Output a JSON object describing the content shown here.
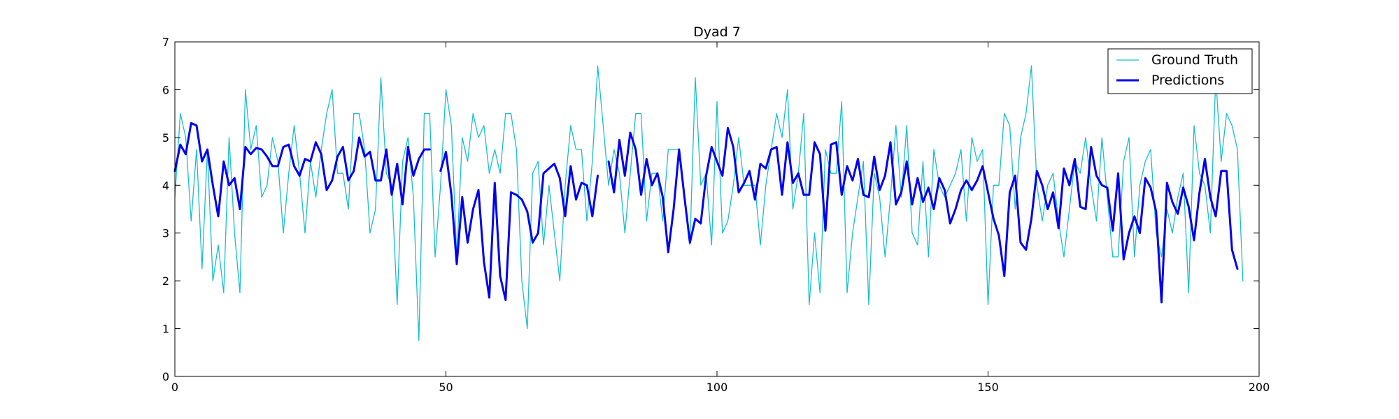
{
  "chart_data": {
    "type": "line",
    "title": "Dyad 7",
    "xlabel": "",
    "ylabel": "",
    "xlim": [
      0,
      200
    ],
    "ylim": [
      0,
      7
    ],
    "xticks": [
      0,
      50,
      100,
      150,
      200
    ],
    "yticks": [
      0,
      1,
      2,
      3,
      4,
      5,
      6,
      7
    ],
    "grid": false,
    "legend_position": "top-right",
    "series": [
      {
        "name": "Ground Truth",
        "color": "#17becf",
        "style": "thin",
        "x": [
          0,
          1,
          2,
          3,
          4,
          5,
          6,
          7,
          8,
          9,
          10,
          11,
          12,
          13,
          14,
          15,
          16,
          17,
          18,
          19,
          20,
          21,
          22,
          23,
          24,
          25,
          26,
          27,
          28,
          29,
          30,
          31,
          32,
          33,
          34,
          35,
          36,
          37,
          38,
          39,
          40,
          41,
          42,
          43,
          44,
          45,
          46,
          47,
          48,
          49,
          50,
          51,
          52,
          53,
          54,
          55,
          56,
          57,
          58,
          59,
          60,
          61,
          62,
          63,
          64,
          65,
          66,
          67,
          68,
          69,
          70,
          71,
          72,
          73,
          74,
          75,
          76,
          77,
          78,
          79,
          80,
          81,
          82,
          83,
          84,
          85,
          86,
          87,
          88,
          89,
          90,
          91,
          92,
          93,
          94,
          95,
          96,
          97,
          98,
          99,
          100,
          101,
          102,
          103,
          104,
          105,
          106,
          107,
          108,
          109,
          110,
          111,
          112,
          113,
          114,
          115,
          116,
          117,
          118,
          119,
          120,
          121,
          122,
          123,
          124,
          125,
          126,
          127,
          128,
          129,
          130,
          131,
          132,
          133,
          134,
          135,
          136,
          137,
          138,
          139,
          140,
          141,
          142,
          143,
          144,
          145,
          146,
          147,
          148,
          149,
          150,
          151,
          152,
          153,
          154,
          155,
          156,
          157,
          158,
          159,
          160,
          161,
          162,
          163,
          164,
          165,
          166,
          167,
          168,
          169,
          170,
          171,
          172,
          173,
          174,
          175,
          176,
          177,
          178,
          179,
          180,
          181,
          182,
          183,
          184,
          185,
          186,
          187,
          188,
          189,
          190,
          191,
          192,
          193,
          194,
          195,
          196,
          197
        ],
        "y": [
          3.75,
          5.5,
          5.0,
          3.25,
          4.75,
          2.25,
          4.75,
          2.0,
          2.75,
          1.75,
          5.0,
          3.0,
          1.75,
          6.0,
          4.75,
          5.25,
          3.75,
          4.0,
          5.0,
          4.5,
          3.0,
          4.25,
          5.25,
          4.25,
          3.0,
          4.5,
          3.75,
          4.75,
          5.5,
          6.0,
          4.25,
          4.25,
          3.5,
          5.5,
          5.5,
          4.75,
          3.0,
          3.5,
          6.25,
          4.25,
          4.0,
          1.5,
          4.5,
          5.0,
          3.75,
          0.75,
          5.5,
          5.5,
          2.5,
          4.0,
          6.0,
          5.25,
          2.5,
          5.0,
          4.5,
          5.5,
          5.0,
          5.25,
          4.25,
          4.75,
          4.25,
          5.5,
          5.5,
          4.75,
          2.0,
          1.0,
          4.25,
          4.5,
          2.75,
          4.0,
          3.0,
          2.0,
          4.0,
          5.25,
          4.75,
          4.75,
          3.25,
          4.5,
          6.5,
          5.25,
          4.0,
          4.75,
          4.25,
          3.0,
          4.25,
          5.5,
          5.5,
          3.25,
          4.25,
          4.25,
          3.25,
          4.75,
          4.75,
          4.75,
          3.75,
          2.75,
          6.25,
          4.0,
          4.25,
          2.75,
          5.75,
          3.0,
          3.25,
          4.0,
          5.0,
          4.0,
          4.0,
          4.0,
          2.75,
          4.0,
          4.75,
          5.5,
          5.0,
          6.0,
          3.5,
          4.25,
          5.5,
          1.5,
          3.0,
          1.75,
          4.75,
          4.25,
          4.25,
          5.75,
          1.75,
          3.0,
          3.75,
          4.5,
          1.5,
          4.25,
          3.75,
          2.5,
          3.75,
          5.25,
          3.75,
          5.25,
          3.0,
          2.75,
          4.5,
          2.5,
          4.75,
          4.0,
          3.75,
          4.0,
          4.25,
          4.75,
          3.25,
          5.0,
          4.5,
          4.75,
          1.5,
          4.0,
          4.0,
          5.5,
          5.25,
          3.5,
          5.0,
          5.5,
          6.5,
          4.0,
          3.25,
          4.0,
          4.25,
          3.25,
          2.5,
          3.5,
          4.5,
          4.25,
          5.0,
          4.0,
          3.25,
          5.0,
          3.75,
          2.5,
          2.5,
          4.5,
          5.0,
          2.5,
          4.0,
          4.5,
          4.75,
          3.0,
          2.5,
          3.5,
          3.0,
          3.75,
          4.25,
          1.75,
          5.25,
          4.25,
          4.0,
          3.0,
          6.25,
          4.5,
          5.5,
          5.25,
          4.75,
          2.0
        ]
      },
      {
        "name": "Predictions",
        "color": "#0000ee",
        "style": "thick",
        "segments": [
          {
            "x": [
              0,
              1,
              2,
              3,
              4,
              5,
              6,
              7,
              8,
              9,
              10,
              11,
              12,
              13,
              14,
              15,
              16,
              17,
              18,
              19,
              20,
              21,
              22,
              23,
              24,
              25,
              26,
              27,
              28,
              29,
              30,
              31,
              32,
              33,
              34,
              35,
              36,
              37,
              38,
              39,
              40,
              41,
              42,
              43,
              44,
              45,
              46,
              47
            ],
            "y": [
              4.3,
              4.85,
              4.65,
              5.3,
              5.25,
              4.5,
              4.75,
              4.0,
              3.35,
              4.5,
              4.0,
              4.15,
              3.5,
              4.8,
              4.65,
              4.78,
              4.75,
              4.6,
              4.4,
              4.4,
              4.8,
              4.85,
              4.4,
              4.2,
              4.55,
              4.5,
              4.9,
              4.65,
              3.9,
              4.1,
              4.6,
              4.8,
              4.1,
              4.3,
              5.0,
              4.6,
              4.7,
              4.1,
              4.1,
              4.75,
              3.8,
              4.45,
              3.6,
              4.8,
              4.2,
              4.55,
              4.75,
              4.75
            ]
          },
          {
            "x": [
              49,
              50,
              51,
              52,
              53,
              54,
              55,
              56,
              57,
              58,
              59,
              60,
              61,
              62,
              63,
              64,
              65,
              66,
              67,
              68,
              69,
              70,
              71,
              72,
              73,
              74,
              75,
              76,
              77,
              78
            ],
            "y": [
              4.3,
              4.7,
              3.8,
              2.35,
              3.75,
              2.8,
              3.5,
              3.9,
              2.4,
              1.65,
              4.05,
              2.1,
              1.6,
              3.85,
              3.8,
              3.7,
              3.45,
              2.8,
              3.0,
              4.25,
              4.35,
              4.45,
              4.15,
              3.35,
              4.4,
              3.7,
              4.05,
              4.0,
              3.35,
              4.2
            ]
          },
          {
            "x": [
              80,
              81,
              82,
              83,
              84,
              85,
              86,
              87,
              88,
              89,
              90,
              91,
              92,
              93,
              94,
              95,
              96,
              97,
              98,
              99,
              100,
              101,
              102,
              103,
              104,
              105,
              106,
              107,
              108,
              109,
              110,
              111,
              112,
              113,
              114,
              115,
              116,
              117,
              118,
              119,
              120,
              121,
              122,
              123,
              124,
              125,
              126,
              127,
              128,
              129,
              130,
              131,
              132,
              133,
              134,
              135,
              136,
              137,
              138,
              139,
              140,
              141,
              142,
              143,
              144,
              145,
              146,
              147,
              148,
              149,
              150,
              151,
              152,
              153,
              154,
              155,
              156,
              157,
              158,
              159,
              160,
              161,
              162,
              163,
              164,
              165,
              166,
              167,
              168,
              169,
              170,
              171,
              172,
              173,
              174,
              175,
              176,
              177,
              178,
              179,
              180,
              181,
              182,
              183,
              184,
              185,
              186,
              187,
              188,
              189,
              190,
              191,
              192,
              193,
              194,
              195,
              196
            ],
            "y": [
              4.5,
              3.85,
              4.95,
              4.2,
              5.1,
              4.75,
              3.8,
              4.55,
              4.0,
              4.25,
              3.75,
              2.6,
              3.5,
              4.75,
              3.75,
              2.8,
              3.3,
              3.2,
              4.2,
              4.8,
              4.5,
              4.2,
              5.2,
              4.8,
              3.85,
              4.05,
              4.3,
              3.7,
              4.45,
              4.35,
              4.75,
              4.8,
              3.8,
              4.9,
              4.05,
              4.25,
              3.8,
              3.8,
              4.9,
              4.65,
              3.05,
              4.85,
              4.9,
              3.8,
              4.4,
              4.1,
              4.55,
              3.8,
              3.75,
              4.6,
              3.9,
              4.2,
              4.9,
              3.6,
              3.85,
              4.5,
              3.6,
              4.15,
              3.65,
              3.95,
              3.5,
              4.15,
              3.9,
              3.2,
              3.5,
              3.9,
              4.1,
              3.9,
              4.1,
              4.4,
              3.85,
              3.3,
              2.95,
              2.1,
              3.85,
              4.2,
              2.8,
              2.65,
              3.3,
              4.3,
              4.0,
              3.5,
              3.85,
              3.1,
              4.35,
              4.0,
              4.55,
              3.55,
              3.5,
              4.8,
              4.2,
              4.0,
              3.95,
              3.05,
              4.25,
              2.45,
              3.0,
              3.35,
              3.0,
              4.15,
              3.95,
              3.45,
              1.55,
              4.05,
              3.65,
              3.4,
              3.95,
              3.55,
              2.85,
              3.85,
              4.55,
              3.75,
              3.35,
              4.3,
              4.3,
              2.65,
              2.25
            ]
          }
        ]
      }
    ]
  }
}
